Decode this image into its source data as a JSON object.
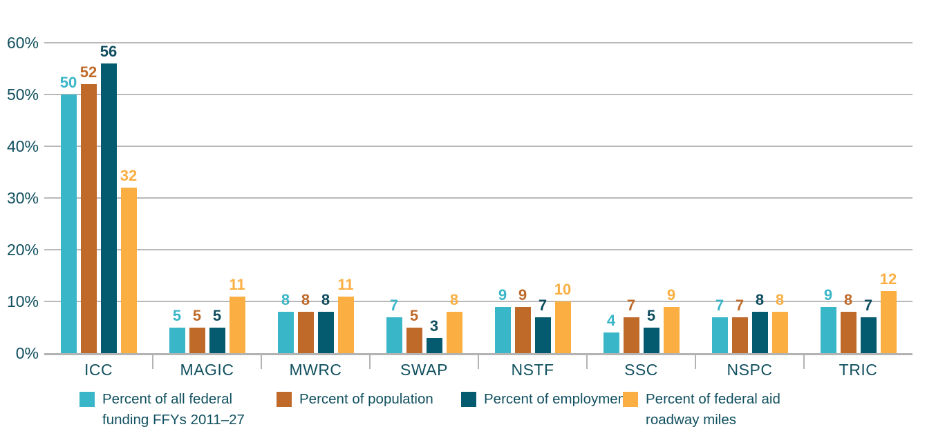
{
  "chart_data": {
    "type": "bar",
    "title": "",
    "categories": [
      "ICC",
      "MAGIC",
      "MWRC",
      "SWAP",
      "NSTF",
      "SSC",
      "NSPC",
      "TRIC"
    ],
    "series": [
      {
        "key": "federal-funding",
        "name": "Percent of all federal funding FFYs 2011–27",
        "color": "#39b6c8",
        "label_color": "#39b6c8",
        "values": [
          50,
          5,
          8,
          7,
          9,
          4,
          7,
          9
        ]
      },
      {
        "key": "population",
        "name": "Percent of population",
        "color": "#c06a2a",
        "label_color": "#c06a2a",
        "values": [
          52,
          5,
          8,
          5,
          9,
          7,
          7,
          8
        ]
      },
      {
        "key": "employment",
        "name": "Percent of employment",
        "color": "#045b6f",
        "label_color": "#0f4d5f",
        "values": [
          56,
          5,
          8,
          3,
          7,
          5,
          8,
          7
        ]
      },
      {
        "key": "roadway-miles",
        "name": "Percent of federal aid roadway miles",
        "color": "#fbaf42",
        "label_color": "#fbaf42",
        "values": [
          32,
          11,
          11,
          8,
          10,
          9,
          8,
          12
        ]
      }
    ],
    "y_axis": {
      "ticks": [
        "60%",
        "50%",
        "40%",
        "30%",
        "20%",
        "10%",
        "0%"
      ],
      "tick_values": [
        60,
        50,
        40,
        30,
        20,
        10,
        0
      ],
      "max": 60,
      "unit": "percent"
    },
    "ylim": [
      0,
      60
    ],
    "grid": true,
    "value_labels": true,
    "legend_position": "bottom",
    "legend": [
      {
        "color": "#39b6c8",
        "lines": [
          "Percent of all federal",
          "funding FFYs 2011–27"
        ]
      },
      {
        "color": "#c06a2a",
        "lines": [
          "Percent of population"
        ]
      },
      {
        "color": "#045b6f",
        "lines": [
          "Percent of employment"
        ]
      },
      {
        "color": "#fbaf42",
        "lines": [
          "Percent of federal aid",
          "roadway miles"
        ]
      }
    ],
    "colors": {
      "text": "#11505f",
      "gridline": "#b9b9b9",
      "axis": "#b3b3b3",
      "background": "#ffffff"
    }
  }
}
